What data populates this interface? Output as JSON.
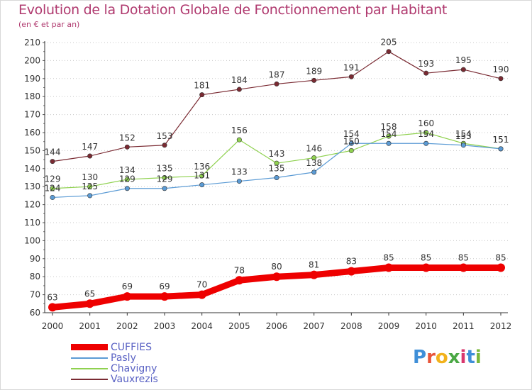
{
  "header": {
    "title": "Evolution de la Dotation Globale de Fonctionnement par Habitant",
    "subtitle": "(en € et par an)"
  },
  "brand": {
    "letters": [
      "P",
      "r",
      "o",
      "x",
      "i",
      "t",
      "i"
    ],
    "colors": [
      "#3f8fd8",
      "#e8553a",
      "#f2b21c",
      "#4aa844",
      "#d9376e",
      "#3f8fd8",
      "#7ab83a"
    ]
  },
  "chart_data": {
    "type": "line",
    "x": [
      "2000",
      "2001",
      "2002",
      "2003",
      "2004",
      "2005",
      "2006",
      "2007",
      "2008",
      "2009",
      "2010",
      "2011",
      "2012"
    ],
    "ylim": [
      60,
      210
    ],
    "yticks": [
      60,
      70,
      80,
      90,
      100,
      110,
      120,
      130,
      140,
      150,
      160,
      170,
      180,
      190,
      200,
      210
    ],
    "grid": "horizontal-dotted",
    "legend": "bottom-left",
    "series": [
      {
        "name": "CUFFIES",
        "color": "#ee0000",
        "values": [
          63,
          65,
          69,
          69,
          70,
          78,
          80,
          81,
          83,
          85,
          85,
          85,
          85
        ]
      },
      {
        "name": "Pasly",
        "color": "#5b9bd5",
        "values": [
          124,
          125,
          129,
          129,
          131,
          133,
          135,
          138,
          154,
          154,
          154,
          153,
          151
        ]
      },
      {
        "name": "Chavigny",
        "color": "#8fd14f",
        "values": [
          129,
          130,
          134,
          135,
          136,
          156,
          143,
          146,
          150,
          158,
          160,
          154,
          151
        ]
      },
      {
        "name": "Vauxrezis",
        "color": "#7a2a32",
        "values": [
          144,
          147,
          152,
          153,
          181,
          184,
          187,
          189,
          191,
          205,
          193,
          195,
          190
        ]
      }
    ]
  }
}
